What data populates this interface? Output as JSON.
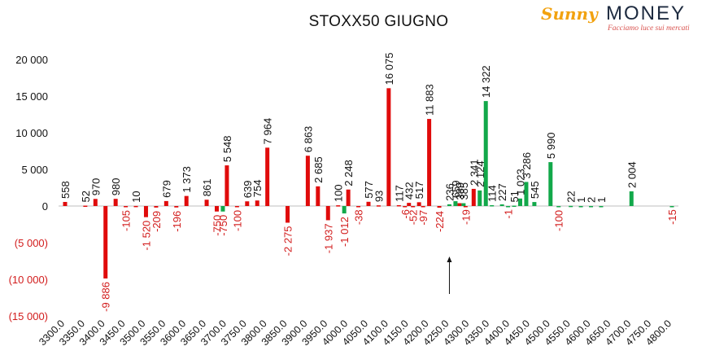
{
  "logo": {
    "brand_part1": "Sunny",
    "brand_part2": "MONEY",
    "tagline": "Facciamo luce sui mercati"
  },
  "colors": {
    "red": "#e00b0b",
    "green": "#12a84a",
    "axis_negative": "#d21c1c",
    "axis_positive": "#111111",
    "zero_label": "#111111"
  },
  "chart_data": {
    "type": "bar",
    "title": "STOXX50 GIUGNO",
    "ylim": [
      -15000,
      20000
    ],
    "yticks": [
      {
        "value": 20000,
        "label": "20 000"
      },
      {
        "value": 15000,
        "label": "15 000"
      },
      {
        "value": 10000,
        "label": "10 000"
      },
      {
        "value": 5000,
        "label": "5 000"
      },
      {
        "value": 0,
        "label": "0"
      },
      {
        "value": -5000,
        "label": "(5 000)"
      },
      {
        "value": -10000,
        "label": "(10 000)"
      },
      {
        "value": -15000,
        "label": "(15 000)"
      }
    ],
    "xticks": [
      "3300.0",
      "3350.0",
      "3400.0",
      "3450.0",
      "3500.0",
      "3550.0",
      "3600.0",
      "3650.0",
      "3700.0",
      "3750.0",
      "3800.0",
      "3850.0",
      "3900.0",
      "3950.0",
      "4000.0",
      "4050.0",
      "4100.0",
      "4150.0",
      "4200.0",
      "4250.0",
      "4300.0",
      "4350.0",
      "4400.0",
      "4450.0",
      "4500.0",
      "4550.0",
      "4600.0",
      "4650.0",
      "4700.0",
      "4750.0",
      "4800.0"
    ],
    "xrange": [
      3300,
      4800
    ],
    "series": [
      {
        "color": "red",
        "points": [
          {
            "x": 3300,
            "y": 558,
            "label": "558"
          },
          {
            "x": 3350,
            "y": 52,
            "label": "52"
          },
          {
            "x": 3375,
            "y": 970,
            "label": "970"
          },
          {
            "x": 3400,
            "y": -9886,
            "label": "-9 886"
          },
          {
            "x": 3425,
            "y": 980,
            "label": "980"
          },
          {
            "x": 3450,
            "y": -105,
            "label": "-105"
          },
          {
            "x": 3475,
            "y": 10,
            "label": "10"
          },
          {
            "x": 3500,
            "y": -1520,
            "label": "-1 520"
          },
          {
            "x": 3525,
            "y": -209,
            "label": "-209"
          },
          {
            "x": 3550,
            "y": 679,
            "label": "679"
          },
          {
            "x": 3575,
            "y": -196,
            "label": "-196"
          },
          {
            "x": 3600,
            "y": 1373,
            "label": "1 373"
          },
          {
            "x": 3650,
            "y": 861,
            "label": "861"
          },
          {
            "x": 3675,
            "y": -750,
            "label": "-750"
          },
          {
            "x": 3700,
            "y": 5548,
            "label": "5 548"
          },
          {
            "x": 3725,
            "y": -100,
            "label": "-100"
          },
          {
            "x": 3750,
            "y": 639,
            "label": "639"
          },
          {
            "x": 3775,
            "y": 754,
            "label": "754"
          },
          {
            "x": 3800,
            "y": 7964,
            "label": "7 964"
          },
          {
            "x": 3850,
            "y": -2275,
            "label": "-2 275"
          },
          {
            "x": 3900,
            "y": 6863,
            "label": "6 863"
          },
          {
            "x": 3925,
            "y": 2685,
            "label": "2 685"
          },
          {
            "x": 3950,
            "y": -1937,
            "label": "-1 937"
          },
          {
            "x": 3975,
            "y": 100,
            "label": "100"
          },
          {
            "x": 4000,
            "y": 2248,
            "label": "2 248"
          },
          {
            "x": 4025,
            "y": -38,
            "label": "-38"
          },
          {
            "x": 4050,
            "y": 577,
            "label": "577"
          },
          {
            "x": 4075,
            "y": 93,
            "label": "93"
          },
          {
            "x": 4100,
            "y": 16075,
            "label": "16 075"
          },
          {
            "x": 4125,
            "y": 117,
            "label": "117"
          },
          {
            "x": 4140,
            "y": -6,
            "label": "-6"
          },
          {
            "x": 4150,
            "y": 432,
            "label": "432"
          },
          {
            "x": 4160,
            "y": -52,
            "label": "-52"
          },
          {
            "x": 4175,
            "y": 517,
            "label": "517"
          },
          {
            "x": 4185,
            "y": -97,
            "label": "-97"
          },
          {
            "x": 4200,
            "y": 11883,
            "label": "11 883"
          },
          {
            "x": 4225,
            "y": -224,
            "label": "-224"
          },
          {
            "x": 4275,
            "y": 389,
            "label": "389"
          },
          {
            "x": 4290,
            "y": -19,
            "label": "-19"
          },
          {
            "x": 4310,
            "y": 2341,
            "label": "2 341"
          }
        ]
      },
      {
        "color": "green",
        "points": [
          {
            "x": 3690,
            "y": -750,
            "label": "-750"
          },
          {
            "x": 3990,
            "y": -1012,
            "label": "-1 012"
          },
          {
            "x": 4250,
            "y": 236,
            "label": "236"
          },
          {
            "x": 4265,
            "y": 659,
            "label": "659"
          },
          {
            "x": 4285,
            "y": 385,
            "label": "385"
          },
          {
            "x": 4325,
            "y": 2124,
            "label": "2 124"
          },
          {
            "x": 4340,
            "y": 14322,
            "label": "14 322"
          },
          {
            "x": 4355,
            "y": 114,
            "label": "114"
          },
          {
            "x": 4380,
            "y": 227,
            "label": "227"
          },
          {
            "x": 4395,
            "y": -1,
            "label": "-1"
          },
          {
            "x": 4410,
            "y": 51,
            "label": "51"
          },
          {
            "x": 4425,
            "y": 1023,
            "label": "1 023"
          },
          {
            "x": 4440,
            "y": 3286,
            "label": "3 286"
          },
          {
            "x": 4460,
            "y": 545,
            "label": "545"
          },
          {
            "x": 4500,
            "y": 5990,
            "label": "5 990"
          },
          {
            "x": 4520,
            "y": -100,
            "label": "-100"
          },
          {
            "x": 4550,
            "y": 22,
            "label": "22"
          },
          {
            "x": 4575,
            "y": 1,
            "label": "1"
          },
          {
            "x": 4600,
            "y": 2,
            "label": "2"
          },
          {
            "x": 4625,
            "y": 1,
            "label": "1"
          },
          {
            "x": 4700,
            "y": 2004,
            "label": "2 004"
          },
          {
            "x": 4800,
            "y": -15,
            "label": "-15"
          }
        ]
      }
    ],
    "annotations": [
      {
        "type": "arrow",
        "x": 4250,
        "y_from": -12000,
        "y_to": -7000,
        "direction": "up"
      }
    ]
  }
}
